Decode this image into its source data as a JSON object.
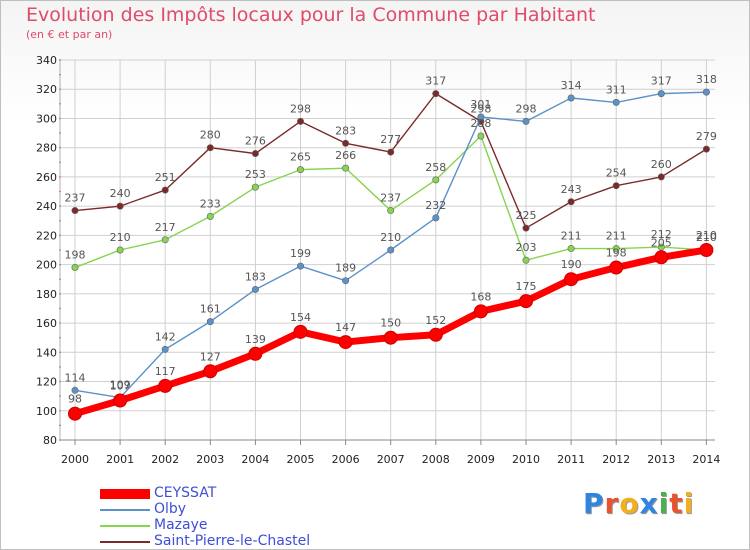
{
  "title": "Evolution des Impôts locaux pour la Commune par Habitant",
  "subtitle": "(en € et par an)",
  "logo": {
    "text": "Proxiti",
    "letter_colors": [
      "#2e86de",
      "#e8542f",
      "#f2b01e",
      "#2e86de",
      "#4caf50",
      "#e8542f",
      "#f2b01e"
    ]
  },
  "chart_data": {
    "type": "line",
    "x": [
      "2000",
      "2001",
      "2002",
      "2003",
      "2004",
      "2005",
      "2006",
      "2007",
      "2008",
      "2009",
      "2010",
      "2011",
      "2012",
      "2013",
      "2014"
    ],
    "ylim": [
      80,
      340
    ],
    "yticks": [
      80,
      100,
      120,
      140,
      160,
      180,
      200,
      220,
      240,
      260,
      280,
      300,
      320,
      340
    ],
    "grid": true,
    "legend": "bottom-left",
    "series": [
      {
        "name": "Saint-Pierre-le-Chastel",
        "color": "#7b2a2a",
        "values": [
          237,
          240,
          251,
          280,
          276,
          298,
          283,
          277,
          317,
          298,
          225,
          243,
          254,
          260,
          279
        ],
        "labels": [
          "237",
          "240",
          "251",
          "280",
          "276",
          "298",
          "283",
          "277",
          "317",
          "298",
          "225",
          "243",
          "254",
          "260",
          "279"
        ]
      },
      {
        "name": "Mazaye",
        "color": "#86d44f",
        "values": [
          198,
          210,
          217,
          233,
          253,
          265,
          266,
          237,
          258,
          288,
          203,
          211,
          211,
          212,
          210
        ],
        "labels": [
          "198",
          "210",
          "217",
          "233",
          "253",
          "265",
          "266",
          "237",
          "258",
          "288",
          "203",
          "211",
          "211",
          "212",
          "210"
        ]
      },
      {
        "name": "Olby",
        "color": "#5b92c9",
        "values": [
          114,
          109,
          142,
          161,
          183,
          199,
          189,
          210,
          232,
          301,
          298,
          314,
          311,
          317,
          318
        ],
        "labels": [
          "114",
          "109",
          "142",
          "161",
          "183",
          "199",
          "189",
          "210",
          "232",
          "301",
          "298",
          "314",
          "311",
          "317",
          "318"
        ]
      },
      {
        "name": "CEYSSAT",
        "color": "#ff0000",
        "values": [
          98,
          107,
          117,
          127,
          139,
          154,
          147,
          150,
          152,
          168,
          175,
          190,
          198,
          205,
          210
        ],
        "labels": [
          "98",
          "107",
          "117",
          "127",
          "139",
          "154",
          "147",
          "150",
          "152",
          "168",
          "175",
          "190",
          "198",
          "205",
          "210"
        ]
      }
    ],
    "legend_order": [
      "CEYSSAT",
      "Olby",
      "Mazaye",
      "Saint-Pierre-le-Chastel"
    ]
  }
}
